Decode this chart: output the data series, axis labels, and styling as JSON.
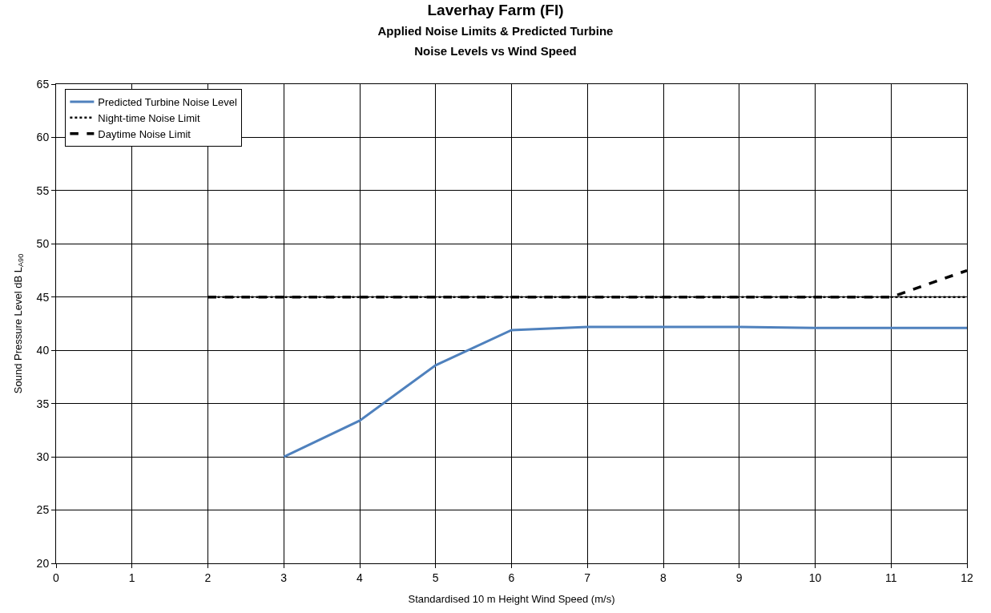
{
  "chart_data": {
    "type": "line",
    "title": "Laverhay Farm (FI)",
    "subtitle": "Applied Noise Limits & Predicted Turbine\nNoise Levels vs Wind Speed",
    "xlabel": "Standardised 10 m Height Wind Speed (m/s)",
    "ylabel": "Sound Pressure Level dB L$_{A90}$",
    "x": [
      2,
      3,
      4,
      5,
      6,
      7,
      8,
      9,
      10,
      11,
      12
    ],
    "series": [
      {
        "name": "Predicted Turbine Noise Level",
        "color": "#4f81bd",
        "line_style": "solid",
        "x": [
          3,
          4,
          5,
          6,
          7,
          8,
          9,
          10,
          11,
          12
        ],
        "values": [
          30,
          33.4,
          38.6,
          41.9,
          42.2,
          42.2,
          42.2,
          42.1,
          42.1,
          42.1
        ]
      },
      {
        "name": "Night-time Noise Limit",
        "color": "#000000",
        "line_style": "dotted",
        "values": [
          45,
          45,
          45,
          45,
          45,
          45,
          45,
          45,
          45,
          45,
          45
        ]
      },
      {
        "name": "Daytime Noise Limit",
        "color": "#000000",
        "line_style": "dashed",
        "values": [
          45,
          45,
          45,
          45,
          45,
          45,
          45,
          45,
          45,
          45,
          47.5
        ]
      }
    ],
    "xlim": [
      0,
      12
    ],
    "xticks": [
      0,
      1,
      2,
      3,
      4,
      5,
      6,
      7,
      8,
      9,
      10,
      11,
      12
    ],
    "ylim": [
      20,
      65
    ],
    "yticks": [
      20,
      25,
      30,
      35,
      40,
      45,
      50,
      55,
      60,
      65
    ],
    "grid": true,
    "legend": "top left",
    "marker": "none"
  }
}
